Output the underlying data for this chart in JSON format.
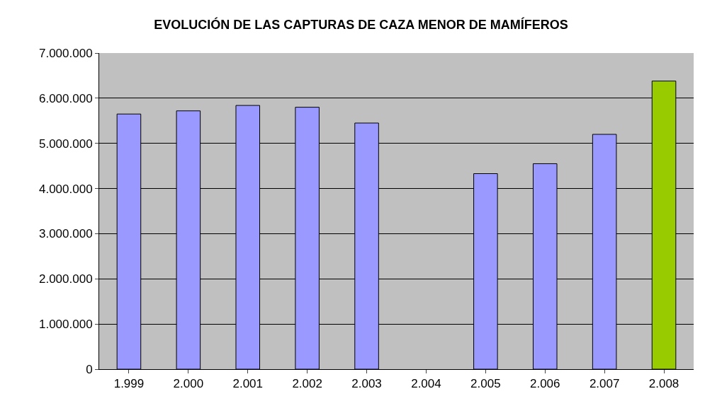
{
  "chart_data": {
    "type": "bar",
    "title": "EVOLUCIÓN DE LAS CAPTURAS DE CAZA MENOR DE MAMÍFEROS",
    "categories": [
      "1.999",
      "2.000",
      "2.001",
      "2.002",
      "2.003",
      "2.004",
      "2.005",
      "2.006",
      "2.007",
      "2.008"
    ],
    "values": [
      5650000,
      5720000,
      5840000,
      5800000,
      5450000,
      null,
      4330000,
      4550000,
      5200000,
      6380000
    ],
    "colors": [
      "#9999ff",
      "#9999ff",
      "#9999ff",
      "#9999ff",
      "#9999ff",
      "#9999ff",
      "#9999ff",
      "#9999ff",
      "#9999ff",
      "#99cc00"
    ],
    "ylim": [
      0,
      7000000
    ],
    "yticks": [
      {
        "value": 0,
        "label": "0"
      },
      {
        "value": 1000000,
        "label": "1.000.000"
      },
      {
        "value": 2000000,
        "label": "2.000.000"
      },
      {
        "value": 3000000,
        "label": "3.000.000"
      },
      {
        "value": 4000000,
        "label": "4.000.000"
      },
      {
        "value": 5000000,
        "label": "5.000.000"
      },
      {
        "value": 6000000,
        "label": "6.000.000"
      },
      {
        "value": 7000000,
        "label": "7.000.000"
      }
    ],
    "grid": "y"
  }
}
